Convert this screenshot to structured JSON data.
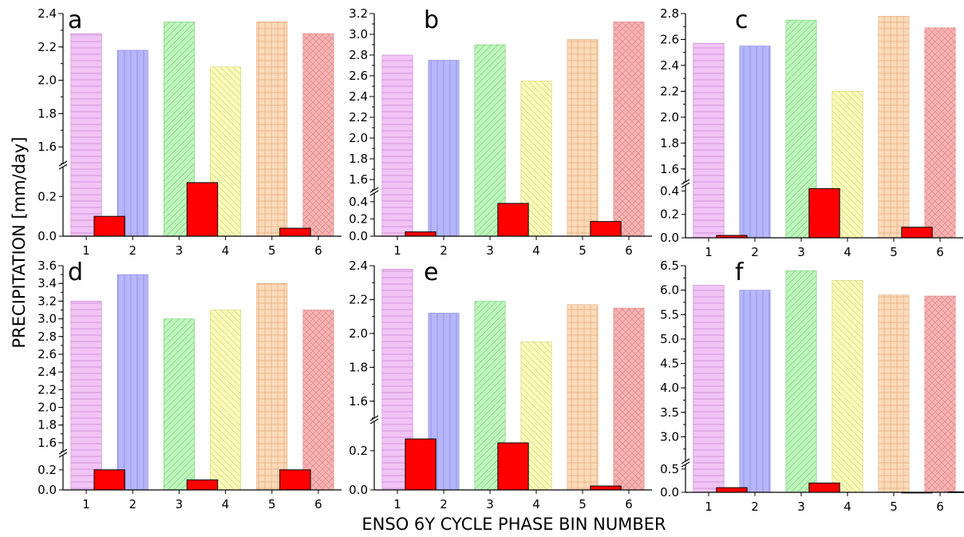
{
  "figure": {
    "ylabel": "PRECIPITATION [mm/day]",
    "xlabel": "ENSO 6Y CYCLE PHASE BIN NUMBER"
  },
  "colors": {
    "bins": [
      "#f2c3f5",
      "#b6b6fa",
      "#bff5bd",
      "#fafabb",
      "#fcdab8",
      "#f8b4b4"
    ],
    "red": "#ff0000"
  },
  "chart_data": [
    {
      "type": "bar",
      "panel": "a",
      "categories": [
        "1",
        "2",
        "3",
        "4",
        "5",
        "6"
      ],
      "series": [
        {
          "values": [
            2.28,
            2.18,
            2.35,
            2.08,
            2.35,
            2.28
          ]
        },
        {
          "values": [
            0.1,
            null,
            0.27,
            null,
            0.04,
            null
          ]
        }
      ],
      "y_lower": {
        "range": [
          0,
          0.35
        ],
        "ticks": [
          "0.0",
          "0.2"
        ]
      },
      "y_upper": {
        "range": [
          1.5,
          2.4
        ],
        "ticks": [
          "1.6",
          "1.8",
          "2.0",
          "2.2",
          "2.4"
        ]
      }
    },
    {
      "type": "bar",
      "panel": "b",
      "categories": [
        "1",
        "2",
        "3",
        "4",
        "5",
        "6"
      ],
      "series": [
        {
          "values": [
            2.8,
            2.75,
            2.9,
            2.55,
            2.95,
            3.12
          ]
        },
        {
          "values": [
            0.05,
            null,
            0.38,
            null,
            0.17,
            null
          ]
        }
      ],
      "y_lower": {
        "range": [
          0,
          0.5
        ],
        "ticks": [
          "0.0",
          "0.2",
          "0.4"
        ]
      },
      "y_upper": {
        "range": [
          1.5,
          3.2
        ],
        "ticks": [
          "1.6",
          "1.8",
          "2.0",
          "2.2",
          "2.4",
          "2.6",
          "2.8",
          "3.0",
          "3.2"
        ]
      }
    },
    {
      "type": "bar",
      "panel": "c",
      "categories": [
        "1",
        "2",
        "3",
        "4",
        "5",
        "6"
      ],
      "series": [
        {
          "values": [
            2.57,
            2.55,
            2.75,
            2.2,
            2.78,
            2.69
          ]
        },
        {
          "values": [
            0.02,
            null,
            0.42,
            null,
            0.09,
            null
          ]
        }
      ],
      "y_lower": {
        "range": [
          0,
          0.45
        ],
        "ticks": [
          "0.0",
          "0.2",
          "0.4"
        ]
      },
      "y_upper": {
        "range": [
          1.5,
          2.8
        ],
        "ticks": [
          "1.6",
          "1.8",
          "2.0",
          "2.2",
          "2.4",
          "2.6",
          "2.8"
        ]
      }
    },
    {
      "type": "bar",
      "panel": "d",
      "categories": [
        "1",
        "2",
        "3",
        "4",
        "5",
        "6"
      ],
      "series": [
        {
          "values": [
            3.2,
            3.5,
            3.0,
            3.1,
            3.4,
            3.1
          ]
        },
        {
          "values": [
            0.2,
            null,
            0.1,
            null,
            0.2,
            null
          ]
        }
      ],
      "y_lower": {
        "range": [
          0,
          0.35
        ],
        "ticks": [
          "0.0",
          "0.2"
        ]
      },
      "y_upper": {
        "range": [
          1.5,
          3.6
        ],
        "ticks": [
          "1.6",
          "1.8",
          "2.0",
          "2.2",
          "2.4",
          "2.6",
          "2.8",
          "3.0",
          "3.2",
          "3.4",
          "3.6"
        ]
      }
    },
    {
      "type": "bar",
      "panel": "e",
      "categories": [
        "1",
        "2",
        "3",
        "4",
        "5",
        "6"
      ],
      "series": [
        {
          "values": [
            2.38,
            2.12,
            2.19,
            1.95,
            2.17,
            2.15
          ]
        },
        {
          "values": [
            0.26,
            null,
            0.24,
            null,
            0.02,
            null
          ]
        }
      ],
      "y_lower": {
        "range": [
          0,
          0.35
        ],
        "ticks": [
          "0.0",
          "0.2"
        ]
      },
      "y_upper": {
        "range": [
          1.5,
          2.4
        ],
        "ticks": [
          "1.6",
          "1.8",
          "2.0",
          "2.2",
          "2.4"
        ]
      }
    },
    {
      "type": "bar",
      "panel": "f",
      "categories": [
        "1",
        "2",
        "3",
        "4",
        "5",
        "6"
      ],
      "series": [
        {
          "values": [
            6.1,
            6.0,
            6.4,
            6.2,
            5.9,
            5.88
          ]
        },
        {
          "values": [
            0.1,
            null,
            0.2,
            null,
            0.0,
            0.01
          ]
        }
      ],
      "y_lower": {
        "range": [
          0,
          0.6
        ],
        "ticks": [
          "0.0",
          "0.5"
        ]
      },
      "y_upper": {
        "range": [
          2.5,
          6.5
        ],
        "ticks": [
          "3.0",
          "3.5",
          "4.0",
          "4.5",
          "5.0",
          "5.5",
          "6.0",
          "6.5"
        ]
      }
    }
  ]
}
